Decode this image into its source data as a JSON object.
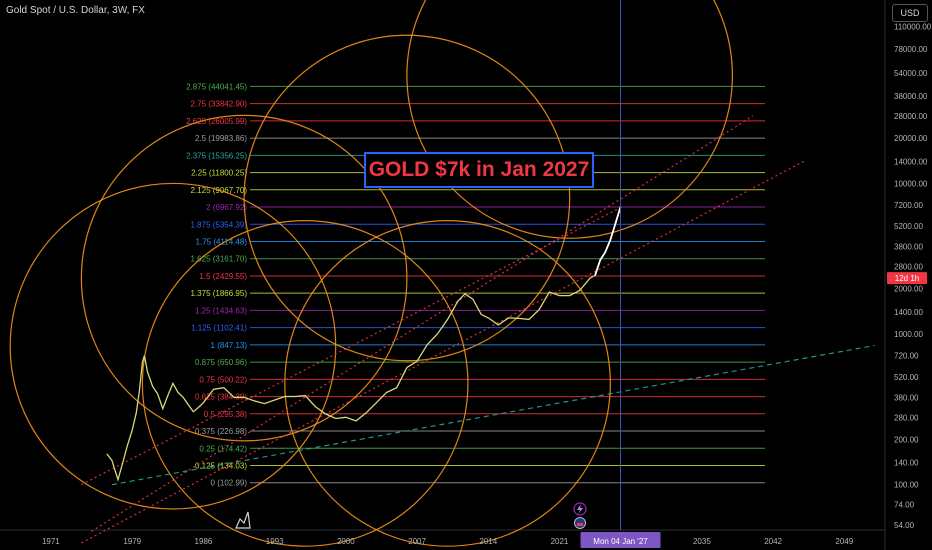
{
  "header": {
    "title": "Gold Spot / U.S. Dollar, 3W, FX",
    "currency": "USD"
  },
  "annotation": {
    "headline": "GOLD $7k in Jan 2027"
  },
  "cursor": {
    "date_label": "Mon 04 Jan '27",
    "price_label": "12d 1h"
  },
  "colors": {
    "background": "#000000",
    "price_line": "#ffffff",
    "circles": "#f7931a",
    "trendline": "#f23645",
    "headline_border": "#2962ff",
    "headline_text": "#f23645"
  },
  "chart_data": {
    "type": "line",
    "title": "Gold Spot / U.S. Dollar, 3W, FX",
    "xlabel": "",
    "ylabel": "",
    "y_scale": "log",
    "xlim": [
      1966,
      2053
    ],
    "ylim": [
      50,
      165000
    ],
    "x_ticks": [
      "1971",
      "1979",
      "1986",
      "1993",
      "2000",
      "2007",
      "2014",
      "2021",
      "2035",
      "2042",
      "2049"
    ],
    "y_ticks": [
      "110000.00",
      "78000.00",
      "54000.00",
      "38000.00",
      "28000.00",
      "20000.00",
      "14000.00",
      "10000.00",
      "7200.00",
      "5200.00",
      "3800.00",
      "2800.00",
      "2000.00",
      "1400.00",
      "1000.00",
      "720.00",
      "520.00",
      "380.00",
      "280.00",
      "200.00",
      "140.00",
      "100.00",
      "74.00",
      "54.00"
    ],
    "fib_levels": [
      {
        "label": "2.875 (44041.45)",
        "value": 44041.45,
        "color": "#4caf50"
      },
      {
        "label": "2.75 (33842.90)",
        "value": 33842.9,
        "color": "#f23645"
      },
      {
        "label": "2.625 (26005.99)",
        "value": 26005.99,
        "color": "#f23645"
      },
      {
        "label": "2.5 (19983.86)",
        "value": 19983.86,
        "color": "#9e9e9e"
      },
      {
        "label": "2.375 (15356.25)",
        "value": 15356.25,
        "color": "#26a69a"
      },
      {
        "label": "2.25 (11800.25)",
        "value": 11800.25,
        "color": "#cddc39"
      },
      {
        "label": "2.125 (9067.70)",
        "value": 9067.7,
        "color": "#cddc39"
      },
      {
        "label": "2 (6967.92)",
        "value": 6967.92,
        "color": "#9c27b0"
      },
      {
        "label": "1.875 (5354.39)",
        "value": 5354.39,
        "color": "#2962ff"
      },
      {
        "label": "1.75 (4114.48)",
        "value": 4114.48,
        "color": "#2196f3"
      },
      {
        "label": "1.625 (3161.70)",
        "value": 3161.7,
        "color": "#4caf50"
      },
      {
        "label": "1.5 (2429.55)",
        "value": 2429.55,
        "color": "#f23645"
      },
      {
        "label": "1.375 (1866.95)",
        "value": 1866.95,
        "color": "#cddc39"
      },
      {
        "label": "1.25 (1434.63)",
        "value": 1434.63,
        "color": "#9c27b0"
      },
      {
        "label": "1.125 (1102.41)",
        "value": 1102.41,
        "color": "#2962ff"
      },
      {
        "label": "1 (847.13)",
        "value": 847.13,
        "color": "#2196f3"
      },
      {
        "label": "0.875 (650.96)",
        "value": 650.96,
        "color": "#4caf50"
      },
      {
        "label": "0.75 (500.22)",
        "value": 500.22,
        "color": "#f23645"
      },
      {
        "label": "0.625 (384.39)",
        "value": 384.39,
        "color": "#f23645"
      },
      {
        "label": "0.5 (295.38)",
        "value": 295.38,
        "color": "#f23645"
      },
      {
        "label": "0.375 (226.98)",
        "value": 226.98,
        "color": "#9e9e9e"
      },
      {
        "label": "0.25 (174.42)",
        "value": 174.42,
        "color": "#4caf50"
      },
      {
        "label": "0.125 (134.03)",
        "value": 134.03,
        "color": "#cddc39"
      },
      {
        "label": "0 (102.99)",
        "value": 102.99,
        "color": "#9e9e9e"
      }
    ],
    "series": [
      {
        "values": [
          [
            1976.5,
            160
          ],
          [
            1977,
            145
          ],
          [
            1977.3,
            125
          ],
          [
            1977.6,
            108
          ],
          [
            1978,
            135
          ],
          [
            1978.5,
            180
          ],
          [
            1979,
            230
          ],
          [
            1979.4,
            300
          ],
          [
            1979.7,
            420
          ],
          [
            1980,
            650
          ],
          [
            1980.2,
            720
          ],
          [
            1980.5,
            560
          ],
          [
            1981,
            450
          ],
          [
            1981.5,
            400
          ],
          [
            1982,
            320
          ],
          [
            1982.5,
            390
          ],
          [
            1983,
            470
          ],
          [
            1983.5,
            410
          ],
          [
            1984,
            380
          ],
          [
            1984.5,
            340
          ],
          [
            1985,
            305
          ],
          [
            1985.5,
            325
          ],
          [
            1986,
            350
          ],
          [
            1987,
            430
          ],
          [
            1988,
            440
          ],
          [
            1989,
            380
          ],
          [
            1990,
            380
          ],
          [
            1991,
            360
          ],
          [
            1992,
            345
          ],
          [
            1993,
            365
          ],
          [
            1994,
            385
          ],
          [
            1995,
            385
          ],
          [
            1996,
            390
          ],
          [
            1997,
            330
          ],
          [
            1998,
            295
          ],
          [
            1999,
            275
          ],
          [
            2000,
            280
          ],
          [
            2001,
            265
          ],
          [
            2002,
            300
          ],
          [
            2003,
            350
          ],
          [
            2004,
            410
          ],
          [
            2005,
            440
          ],
          [
            2006,
            600
          ],
          [
            2007,
            660
          ],
          [
            2008,
            850
          ],
          [
            2009,
            1000
          ],
          [
            2010,
            1250
          ],
          [
            2011,
            1650
          ],
          [
            2011.7,
            1850
          ],
          [
            2012.5,
            1700
          ],
          [
            2013.3,
            1350
          ],
          [
            2014,
            1280
          ],
          [
            2015,
            1150
          ],
          [
            2016,
            1280
          ],
          [
            2017,
            1270
          ],
          [
            2018,
            1250
          ],
          [
            2019,
            1450
          ],
          [
            2020,
            1900
          ],
          [
            2021,
            1800
          ],
          [
            2022,
            1800
          ],
          [
            2023,
            1950
          ],
          [
            2024,
            2350
          ],
          [
            2024.5,
            2450
          ],
          [
            2025,
            3100
          ],
          [
            2025.5,
            3500
          ],
          [
            2026,
            4200
          ],
          [
            2026.5,
            5400
          ],
          [
            2027,
            7000
          ]
        ]
      }
    ],
    "trendlines": [
      {
        "style": "dotted",
        "color": "#f23645",
        "points": [
          [
            1974,
            100
          ],
          [
            2027,
            6900
          ]
        ]
      },
      {
        "style": "dotted",
        "color": "#f23645",
        "points": [
          [
            1974,
            41
          ],
          [
            2045,
            14000
          ]
        ]
      },
      {
        "style": "dotted",
        "color": "#f23645",
        "points": [
          [
            1975,
            49
          ],
          [
            2040,
            28000
          ]
        ]
      },
      {
        "style": "dashed",
        "color": "#26a69a",
        "points": [
          [
            1977,
            100
          ],
          [
            2052,
            840
          ]
        ]
      }
    ],
    "circles": [
      {
        "cx": 1983,
        "cy": 830,
        "r_years": 16
      },
      {
        "cx": 1996,
        "cy": 470,
        "r_years": 16
      },
      {
        "cx": 2010,
        "cy": 470,
        "r_years": 16
      },
      {
        "cx": 2006,
        "cy": 8000,
        "r_years": 16
      },
      {
        "cx": 2022,
        "cy": 52000,
        "r_years": 16
      },
      {
        "cx": 1990,
        "cy": 2350,
        "r_years": 16
      }
    ],
    "cursor_x": 2027
  }
}
